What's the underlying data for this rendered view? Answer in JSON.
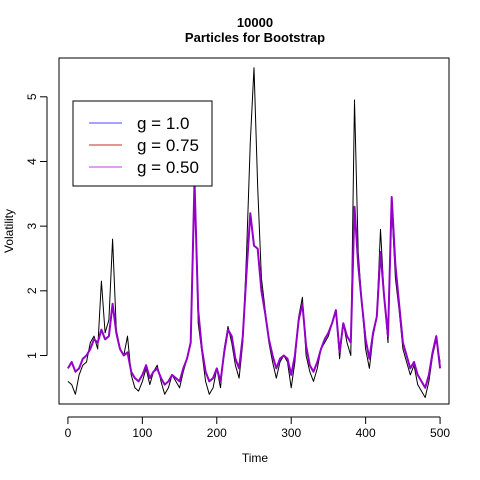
{
  "chart_data": {
    "type": "line",
    "title": "10000",
    "subtitle": "Particles for Bootstrap",
    "xlabel": "Time",
    "ylabel": "Volatility",
    "xlim": [
      -12,
      512
    ],
    "ylim": [
      0.25,
      5.6
    ],
    "xticks": [
      0,
      100,
      200,
      300,
      400,
      500
    ],
    "yticks": [
      1,
      2,
      3,
      4,
      5
    ],
    "grid": false,
    "legend_position": "top-left",
    "legend": [
      {
        "label": "g = 1.0",
        "color": "#4a4aff"
      },
      {
        "label": "g = 0.75",
        "color": "#cc2a2a"
      },
      {
        "label": "g = 0.50",
        "color": "#c040e0"
      }
    ],
    "series": [
      {
        "role": "true-volatility",
        "color": "#000000",
        "x": [
          0,
          5,
          10,
          15,
          20,
          25,
          30,
          35,
          40,
          45,
          50,
          55,
          60,
          65,
          70,
          75,
          80,
          85,
          90,
          95,
          100,
          105,
          110,
          115,
          120,
          125,
          130,
          135,
          140,
          145,
          150,
          155,
          160,
          165,
          170,
          175,
          180,
          185,
          190,
          195,
          200,
          205,
          210,
          215,
          220,
          225,
          230,
          235,
          240,
          245,
          250,
          255,
          260,
          265,
          270,
          275,
          280,
          285,
          290,
          295,
          300,
          305,
          310,
          315,
          320,
          325,
          330,
          335,
          340,
          345,
          350,
          355,
          360,
          365,
          370,
          375,
          380,
          385,
          390,
          395,
          400,
          405,
          410,
          415,
          420,
          425,
          430,
          435,
          440,
          445,
          450,
          455,
          460,
          465,
          470,
          475,
          480,
          485,
          490,
          495,
          500
        ],
        "y": [
          0.6,
          0.55,
          0.4,
          0.7,
          0.85,
          0.9,
          1.2,
          1.3,
          1.1,
          2.15,
          1.35,
          1.55,
          2.8,
          1.4,
          1.1,
          1.0,
          1.3,
          0.7,
          0.5,
          0.45,
          0.6,
          0.8,
          0.55,
          0.75,
          0.85,
          0.6,
          0.4,
          0.5,
          0.7,
          0.6,
          0.5,
          0.75,
          0.95,
          1.2,
          3.75,
          1.5,
          1.05,
          0.6,
          0.4,
          0.5,
          0.8,
          0.5,
          1.1,
          1.45,
          1.2,
          0.85,
          0.65,
          1.2,
          2.6,
          4.3,
          5.45,
          3.6,
          2.2,
          1.7,
          1.2,
          0.9,
          0.65,
          0.9,
          1.0,
          0.9,
          0.5,
          0.9,
          1.6,
          1.9,
          1.0,
          0.75,
          0.6,
          0.8,
          1.1,
          1.2,
          1.3,
          1.5,
          1.7,
          0.95,
          1.5,
          1.2,
          1.0,
          4.95,
          2.6,
          1.8,
          1.1,
          0.8,
          1.3,
          1.6,
          2.95,
          1.9,
          1.2,
          3.3,
          2.2,
          1.7,
          1.1,
          0.9,
          0.7,
          0.85,
          0.55,
          0.45,
          0.35,
          0.6,
          1.0,
          1.25,
          0.9
        ]
      },
      {
        "role": "filtered-estimate",
        "color": "#9400c8",
        "x": [
          0,
          5,
          10,
          15,
          20,
          25,
          30,
          35,
          40,
          45,
          50,
          55,
          60,
          65,
          70,
          75,
          80,
          85,
          90,
          95,
          100,
          105,
          110,
          115,
          120,
          125,
          130,
          135,
          140,
          145,
          150,
          155,
          160,
          165,
          170,
          175,
          180,
          185,
          190,
          195,
          200,
          205,
          210,
          215,
          220,
          225,
          230,
          235,
          240,
          245,
          250,
          255,
          260,
          265,
          270,
          275,
          280,
          285,
          290,
          295,
          300,
          305,
          310,
          315,
          320,
          325,
          330,
          335,
          340,
          345,
          350,
          355,
          360,
          365,
          370,
          375,
          380,
          385,
          390,
          395,
          400,
          405,
          410,
          415,
          420,
          425,
          430,
          435,
          440,
          445,
          450,
          455,
          460,
          465,
          470,
          475,
          480,
          485,
          490,
          495,
          500
        ],
        "y": [
          0.8,
          0.9,
          0.75,
          0.8,
          0.95,
          1.0,
          1.1,
          1.25,
          1.2,
          1.4,
          1.25,
          1.3,
          1.8,
          1.35,
          1.1,
          1.0,
          1.05,
          0.75,
          0.65,
          0.6,
          0.7,
          0.85,
          0.65,
          0.75,
          0.8,
          0.65,
          0.55,
          0.6,
          0.7,
          0.65,
          0.6,
          0.8,
          0.95,
          1.2,
          3.7,
          1.7,
          1.1,
          0.75,
          0.6,
          0.65,
          0.8,
          0.6,
          1.05,
          1.4,
          1.3,
          0.95,
          0.8,
          1.3,
          2.3,
          3.2,
          2.7,
          2.65,
          2.0,
          1.65,
          1.25,
          1.0,
          0.8,
          0.95,
          1.0,
          0.95,
          0.7,
          1.0,
          1.55,
          1.8,
          1.15,
          0.85,
          0.75,
          0.9,
          1.1,
          1.25,
          1.35,
          1.5,
          1.7,
          1.05,
          1.5,
          1.3,
          1.2,
          3.3,
          2.4,
          1.8,
          1.25,
          0.95,
          1.35,
          1.6,
          2.6,
          1.9,
          1.3,
          3.45,
          2.4,
          1.8,
          1.2,
          1.0,
          0.8,
          0.9,
          0.7,
          0.6,
          0.5,
          0.7,
          1.05,
          1.3,
          0.8
        ]
      }
    ]
  }
}
